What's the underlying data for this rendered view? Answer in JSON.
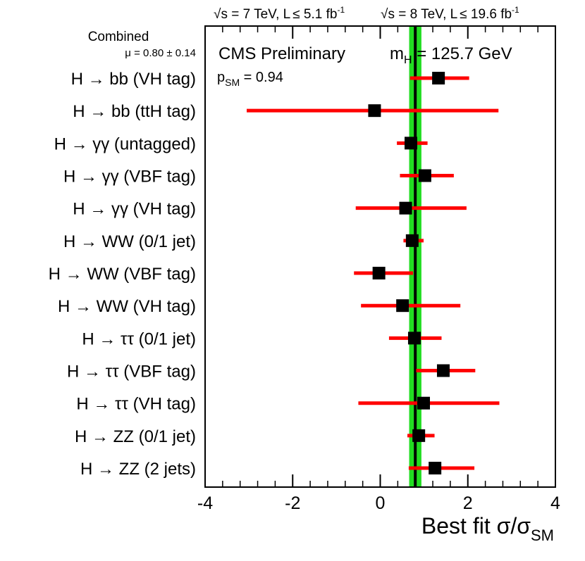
{
  "chart_data": {
    "type": "scatter",
    "title": "",
    "header": {
      "lumi7_prefix": "s = 7 TeV, L",
      "lumi7_value": " 5.1 fb",
      "lumi8_prefix": "s = 8 TeV, L",
      "lumi8_value": " 19.6 fb",
      "lumi_exp": "-1",
      "leq_symbol": "≤",
      "sqrt_symbol": "√"
    },
    "experiment_label": "CMS Preliminary",
    "mass_label": {
      "symbol": "m",
      "subscript": "H",
      "value": " = 125.7 GeV"
    },
    "psm_label": {
      "symbol": "p",
      "subscript": "SM",
      "value": " = 0.94"
    },
    "combined": {
      "label": "Combined",
      "mu_text": "μ = 0.80 ± 0.14",
      "mu": 0.8,
      "err": 0.14,
      "line_color": "#000000",
      "band_color": "#22dd22"
    },
    "xlabel": {
      "prefix": "Best fit σ/σ",
      "subscript": "SM"
    },
    "xlim": [
      -4,
      4
    ],
    "xticks": [
      {
        "value": -4,
        "label": "-4"
      },
      {
        "value": -2,
        "label": "-2"
      },
      {
        "value": 0,
        "label": "0"
      },
      {
        "value": 2,
        "label": "2"
      },
      {
        "value": 4,
        "label": "4"
      }
    ],
    "marker_color": "#000000",
    "error_color": "#ff0000",
    "channels": [
      {
        "label": "H → bb (VH tag)",
        "value": 1.33,
        "low": 0.68,
        "high": 2.03
      },
      {
        "label": "H → bb (ttH tag)",
        "value": -0.13,
        "low": -3.05,
        "high": 2.7
      },
      {
        "label": "H → γγ (untagged)",
        "value": 0.7,
        "low": 0.38,
        "high": 1.08
      },
      {
        "label": "H → γγ (VBF tag)",
        "value": 1.02,
        "low": 0.45,
        "high": 1.68
      },
      {
        "label": "H → γγ (VH tag)",
        "value": 0.58,
        "low": -0.56,
        "high": 1.97
      },
      {
        "label": "H → WW (0/1 jet)",
        "value": 0.73,
        "low": 0.53,
        "high": 0.99
      },
      {
        "label": "H → WW (VBF tag)",
        "value": -0.03,
        "low": -0.6,
        "high": 0.75
      },
      {
        "label": "H → WW (VH tag)",
        "value": 0.51,
        "low": -0.44,
        "high": 1.83
      },
      {
        "label": "H → ττ (0/1 jet)",
        "value": 0.78,
        "low": 0.2,
        "high": 1.4
      },
      {
        "label": "H → ττ (VBF tag)",
        "value": 1.44,
        "low": 0.82,
        "high": 2.17
      },
      {
        "label": "H → ττ (VH tag)",
        "value": 0.99,
        "low": -0.5,
        "high": 2.72
      },
      {
        "label": "H → ZZ (0/1 jet)",
        "value": 0.88,
        "low": 0.62,
        "high": 1.24
      },
      {
        "label": "H → ZZ (2 jets)",
        "value": 1.25,
        "low": 0.65,
        "high": 2.15
      }
    ]
  }
}
